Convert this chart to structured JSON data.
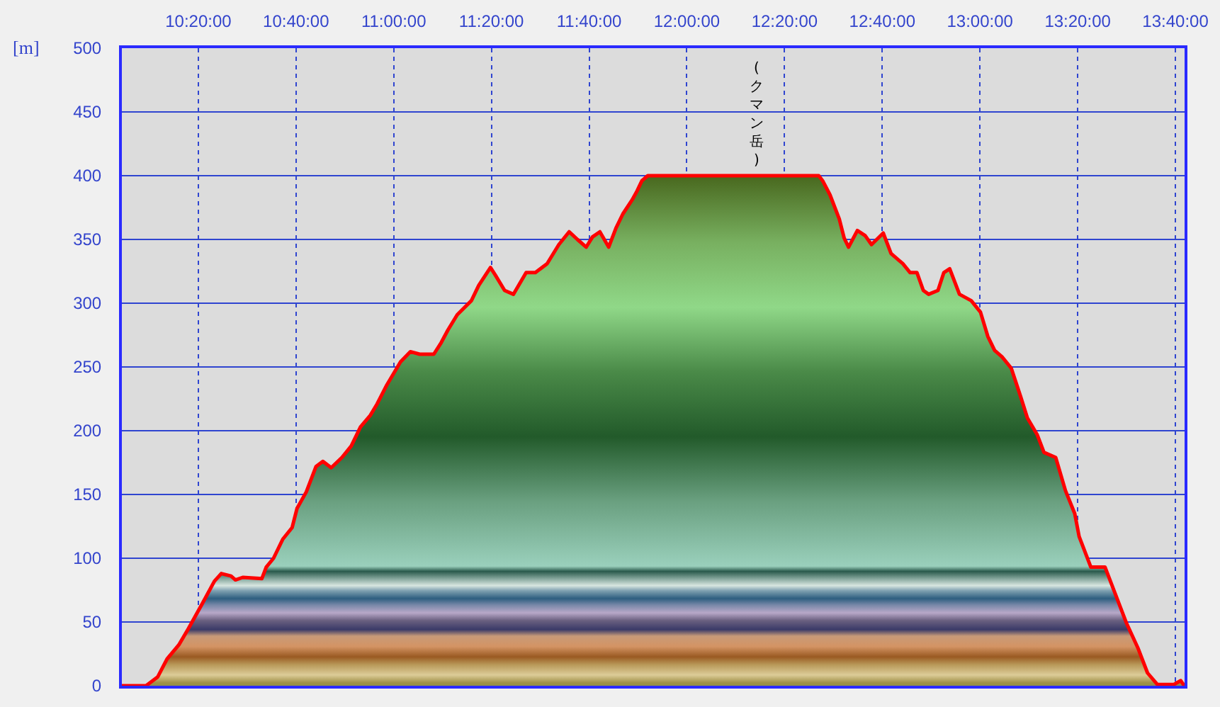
{
  "chart_data": {
    "type": "area",
    "ylabel": "[m]",
    "annotations": [
      {
        "text": "(クマン岳)",
        "x": 12.237,
        "y": 400
      }
    ],
    "x": [
      10.0725,
      10.155,
      10.195,
      10.2267,
      10.2667,
      10.3,
      10.3483,
      10.3883,
      10.4117,
      10.445,
      10.46,
      10.485,
      10.55,
      10.565,
      10.59,
      10.6217,
      10.6533,
      10.67,
      10.7017,
      10.735,
      10.7583,
      10.7867,
      10.8233,
      10.855,
      10.8867,
      10.92,
      10.9433,
      10.9767,
      11.0,
      11.0233,
      11.0567,
      11.0883,
      11.1367,
      11.1617,
      11.185,
      11.2167,
      11.265,
      11.29,
      11.33,
      11.3467,
      11.3783,
      11.4083,
      11.4517,
      11.4833,
      11.5233,
      11.5633,
      11.5983,
      11.6267,
      11.6567,
      11.6783,
      11.7033,
      11.7333,
      11.7583,
      11.7817,
      11.8133,
      11.83,
      11.8467,
      11.8667,
      12.0,
      12.25,
      12.45,
      12.4633,
      12.4883,
      12.52,
      12.5367,
      12.5517,
      12.5817,
      12.6083,
      12.63,
      12.67,
      12.6967,
      12.7367,
      12.7617,
      12.785,
      12.8067,
      12.825,
      12.8567,
      12.8767,
      12.8967,
      12.93,
      12.97,
      13.0017,
      13.0267,
      13.05,
      13.075,
      13.1067,
      13.1383,
      13.1617,
      13.195,
      13.2183,
      13.2583,
      13.2917,
      13.3233,
      13.3383,
      13.3783,
      13.4267,
      13.46,
      13.5,
      13.54,
      13.5717,
      13.605,
      13.6617,
      13.685,
      13.6967
    ],
    "series": [
      {
        "color": "#ff0000",
        "values": [
          0,
          0,
          7,
          21,
          32,
          45,
          65,
          82,
          88,
          86,
          83,
          85,
          84,
          93,
          100,
          115,
          124,
          139,
          152,
          172,
          176,
          171,
          179,
          188,
          203,
          212,
          221,
          236,
          245,
          254,
          262,
          260,
          260,
          269,
          279,
          291,
          302,
          314,
          328,
          322,
          310,
          307,
          324,
          324,
          331,
          346,
          356,
          350,
          344,
          352,
          356,
          344,
          359,
          370,
          381,
          388,
          396,
          400,
          400,
          400,
          400,
          396,
          385,
          366,
          351,
          344,
          357,
          353,
          346,
          355,
          339,
          331,
          324,
          324,
          310,
          307,
          310,
          324,
          327,
          307,
          302,
          293,
          274,
          263,
          258,
          249,
          227,
          210,
          197,
          183,
          179,
          153,
          135,
          117,
          93,
          93,
          73,
          49,
          29,
          10,
          1,
          1,
          4,
          0
        ]
      }
    ],
    "xlim": [
      10.0725,
      13.698
    ],
    "xticks": [
      {
        "value": 10.3333,
        "label": "10:20:00"
      },
      {
        "value": 10.6667,
        "label": "10:40:00"
      },
      {
        "value": 11.0,
        "label": "11:00:00"
      },
      {
        "value": 11.3333,
        "label": "11:20:00"
      },
      {
        "value": 11.6667,
        "label": "11:40:00"
      },
      {
        "value": 12.0,
        "label": "12:00:00"
      },
      {
        "value": 12.3333,
        "label": "12:20:00"
      },
      {
        "value": 12.6667,
        "label": "12:40:00"
      },
      {
        "value": 13.0,
        "label": "13:00:00"
      },
      {
        "value": 13.3333,
        "label": "13:20:00"
      },
      {
        "value": 13.6667,
        "label": "13:40:00"
      }
    ],
    "ylim": [
      0,
      500
    ],
    "yticks": [
      0,
      50,
      100,
      150,
      200,
      250,
      300,
      350,
      400,
      450,
      500
    ],
    "grid": true,
    "line_style": "solid"
  }
}
